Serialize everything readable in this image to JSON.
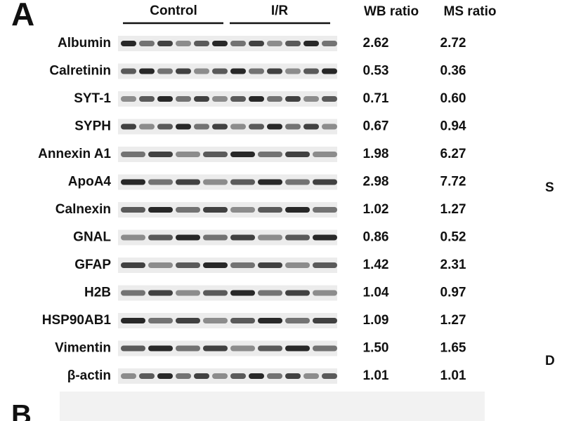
{
  "panel_label": "A",
  "panel_label_b": "B",
  "edge_letters": [
    "S",
    "D"
  ],
  "groups": [
    "Control",
    "I/R"
  ],
  "columns": [
    "WB ratio",
    "MS ratio"
  ],
  "rows": [
    {
      "name": "Albumin",
      "wb": "2.62",
      "ms": "2.72"
    },
    {
      "name": "Calretinin",
      "wb": "0.53",
      "ms": "0.36"
    },
    {
      "name": "SYT-1",
      "wb": "0.71",
      "ms": "0.60"
    },
    {
      "name": "SYPH",
      "wb": "0.67",
      "ms": "0.94"
    },
    {
      "name": "Annexin A1",
      "wb": "1.98",
      "ms": "6.27"
    },
    {
      "name": "ApoA4",
      "wb": "2.98",
      "ms": "7.72"
    },
    {
      "name": "Calnexin",
      "wb": "1.02",
      "ms": "1.27"
    },
    {
      "name": "GNAL",
      "wb": "0.86",
      "ms": "0.52"
    },
    {
      "name": "GFAP",
      "wb": "1.42",
      "ms": "2.31"
    },
    {
      "name": "H2B",
      "wb": "1.04",
      "ms": "0.97"
    },
    {
      "name": "HSP90AB1",
      "wb": "1.09",
      "ms": "1.27"
    },
    {
      "name": "Vimentin",
      "wb": "1.50",
      "ms": "1.65"
    },
    {
      "name": "β-actin",
      "wb": "1.01",
      "ms": "1.01"
    }
  ]
}
